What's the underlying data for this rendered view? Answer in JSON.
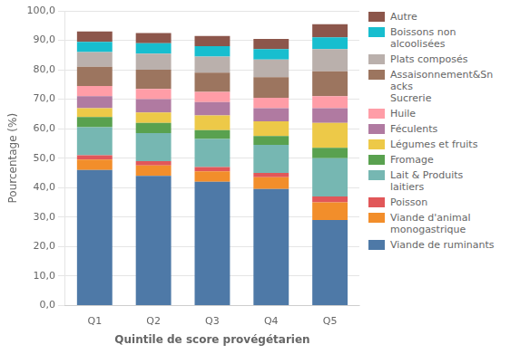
{
  "chart_data": {
    "type": "bar",
    "stacked": true,
    "categories": [
      "Q1",
      "Q2",
      "Q3",
      "Q4",
      "Q5"
    ],
    "xlabel": "Quintile de score provégétarien",
    "ylabel": "Pourcentage (%)",
    "ylim": [
      0,
      100
    ],
    "yticks": [
      {
        "value": 0,
        "label": "0,0"
      },
      {
        "value": 10,
        "label": "10,0"
      },
      {
        "value": 20,
        "label": "20,0"
      },
      {
        "value": 30,
        "label": "30,0"
      },
      {
        "value": 40,
        "label": "40,0"
      },
      {
        "value": 50,
        "label": "50,0"
      },
      {
        "value": 60,
        "label": "60,0"
      },
      {
        "value": 70,
        "label": "70,0"
      },
      {
        "value": 80,
        "label": "80,0"
      },
      {
        "value": 90,
        "label": "90,0"
      },
      {
        "value": 100,
        "label": "100,0"
      }
    ],
    "grid": true,
    "legend": "right",
    "series": [
      {
        "name": "Viande de ruminants",
        "color": "#4e79a7",
        "values": [
          46.0,
          44.0,
          42.0,
          39.5,
          29.0
        ]
      },
      {
        "name": "Viande d'animal\nmonogastrique",
        "color": "#f28e2b",
        "values": [
          3.5,
          3.5,
          3.5,
          4.0,
          6.0
        ]
      },
      {
        "name": "Poisson",
        "color": "#e15759",
        "values": [
          1.5,
          1.5,
          1.5,
          1.5,
          2.0
        ]
      },
      {
        "name": "Lait & Produits\nlaitiers",
        "color": "#76b7b2",
        "values": [
          9.5,
          9.5,
          9.5,
          9.5,
          13.0
        ]
      },
      {
        "name": "Fromage",
        "color": "#59a14f",
        "values": [
          3.5,
          3.5,
          3.0,
          3.0,
          3.5
        ]
      },
      {
        "name": "Légumes et fruits",
        "color": "#edc948",
        "values": [
          3.0,
          3.5,
          5.0,
          5.0,
          8.5
        ]
      },
      {
        "name": "Féculents",
        "color": "#b07aa1",
        "values": [
          4.0,
          4.5,
          4.5,
          4.5,
          5.0
        ]
      },
      {
        "name": "Huile",
        "color": "#ff9da7",
        "values": [
          3.5,
          3.5,
          3.5,
          3.5,
          4.0
        ]
      },
      {
        "name": "Assaisonnement&Sn\nacks\nSucrerie",
        "color": "#9c755f",
        "values": [
          6.5,
          6.5,
          6.5,
          7.0,
          8.5
        ]
      },
      {
        "name": "Plats composés",
        "color": "#bab0ac",
        "values": [
          5.0,
          5.5,
          5.5,
          6.0,
          7.5
        ]
      },
      {
        "name": "Boissons non\nalcoolisées",
        "color": "#17becf",
        "values": [
          3.5,
          3.5,
          3.5,
          3.5,
          4.0
        ]
      },
      {
        "name": "Autre",
        "color": "#8c564b",
        "values": [
          3.5,
          3.5,
          3.5,
          3.5,
          4.5
        ]
      }
    ]
  }
}
